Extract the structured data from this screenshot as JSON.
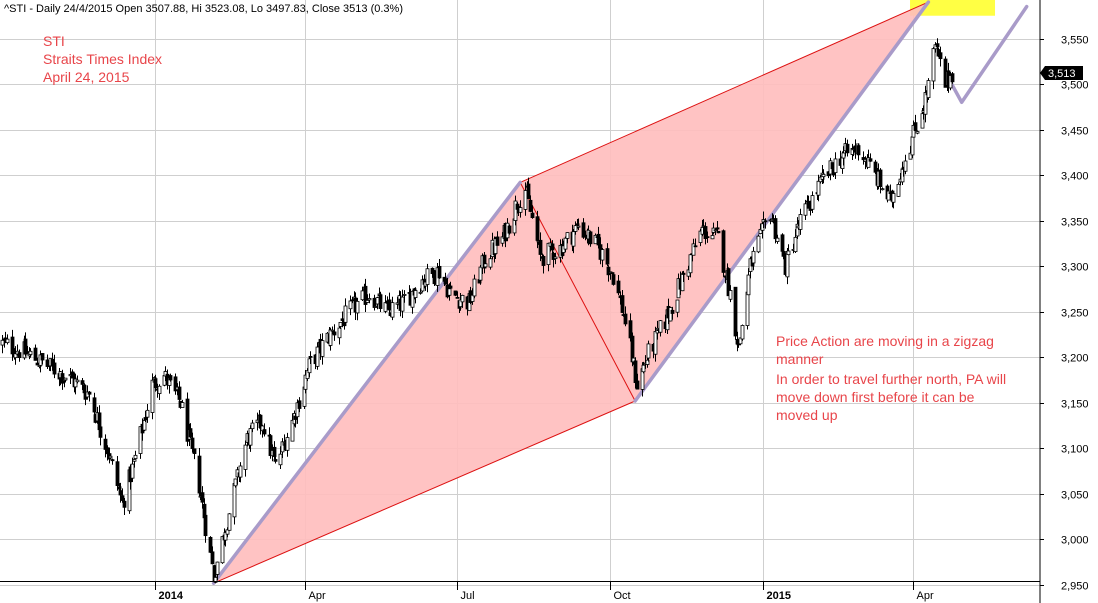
{
  "header": {
    "title": "^STI - Daily 24/4/2015 Open 3507.88, Hi 3523.08, Lo 3497.83, Close 3513 (0.3%)"
  },
  "annotations": {
    "top_left": [
      "STI",
      "Straits Times Index",
      "April 24, 2015"
    ],
    "right": [
      "Price Action are moving in a zigzag",
      "manner",
      "In order to travel further north, PA will",
      "move down first before it can be",
      "moved up"
    ]
  },
  "colors": {
    "annotation_text": "#e8454a",
    "channel_fill": "#ffbcbc",
    "channel_line": "#dd1111",
    "trend_line": "#a99bc9",
    "target_box": "#ffff44",
    "grid": "#cfcfcf",
    "candle": "#000000",
    "last_price_bg": "#000000",
    "last_price_text": "#ffffff"
  },
  "chart_data": {
    "type": "candlestick",
    "symbol": "^STI",
    "period": "Daily",
    "last_bar": {
      "date": "24/4/2015",
      "open": 3507.88,
      "high": 3523.08,
      "low": 3497.83,
      "close": 3513,
      "change_pct": 0.3
    },
    "last_price_label": "3,513",
    "ylim": [
      2940,
      3600
    ],
    "y_ticks": [
      2950,
      3000,
      3050,
      3100,
      3150,
      3200,
      3250,
      3300,
      3350,
      3400,
      3450,
      3500,
      3550
    ],
    "y_tick_labels": [
      "2,950",
      "3,000",
      "3,050",
      "3,100",
      "3,150",
      "3,200",
      "3,250",
      "3,300",
      "3,350",
      "3,400",
      "3,450",
      "3,500",
      "3,550"
    ],
    "x_ticks": [
      {
        "label": "2014",
        "date": "2014-01-01",
        "bold": true
      },
      {
        "label": "Apr",
        "date": "2014-04-01",
        "bold": false
      },
      {
        "label": "Jul",
        "date": "2014-07-01",
        "bold": false
      },
      {
        "label": "Oct",
        "date": "2014-10-01",
        "bold": false
      },
      {
        "label": "2015",
        "date": "2015-01-01",
        "bold": true
      },
      {
        "label": "Apr",
        "date": "2015-04-01",
        "bold": false
      }
    ],
    "price_path": [
      [
        "2013-10-01",
        3215
      ],
      [
        "2013-10-15",
        3205
      ],
      [
        "2013-10-29",
        3190
      ],
      [
        "2013-11-12",
        3175
      ],
      [
        "2013-11-22",
        3160
      ],
      [
        "2013-12-03",
        3100
      ],
      [
        "2013-12-12",
        3040
      ],
      [
        "2013-12-20",
        3090
      ],
      [
        "2013-12-30",
        3170
      ],
      [
        "2014-01-06",
        3180
      ],
      [
        "2014-01-16",
        3150
      ],
      [
        "2014-01-27",
        3060
      ],
      [
        "2014-02-05",
        2960
      ],
      [
        "2014-02-14",
        3030
      ],
      [
        "2014-02-25",
        3110
      ],
      [
        "2014-03-06",
        3130
      ],
      [
        "2014-03-14",
        3080
      ],
      [
        "2014-03-24",
        3130
      ],
      [
        "2014-04-03",
        3190
      ],
      [
        "2014-04-10",
        3210
      ],
      [
        "2014-04-18",
        3230
      ],
      [
        "2014-04-30",
        3255
      ],
      [
        "2014-05-09",
        3270
      ],
      [
        "2014-05-20",
        3250
      ],
      [
        "2014-05-30",
        3260
      ],
      [
        "2014-06-10",
        3285
      ],
      [
        "2014-06-20",
        3295
      ],
      [
        "2014-06-27",
        3270
      ],
      [
        "2014-07-08",
        3260
      ],
      [
        "2014-07-18",
        3310
      ],
      [
        "2014-07-28",
        3330
      ],
      [
        "2014-08-06",
        3370
      ],
      [
        "2014-08-11",
        3385
      ],
      [
        "2014-08-20",
        3310
      ],
      [
        "2014-09-01",
        3320
      ],
      [
        "2014-09-12",
        3345
      ],
      [
        "2014-09-24",
        3320
      ],
      [
        "2014-10-03",
        3290
      ],
      [
        "2014-10-10",
        3240
      ],
      [
        "2014-10-17",
        3170
      ],
      [
        "2014-10-23",
        3200
      ],
      [
        "2014-11-03",
        3240
      ],
      [
        "2014-11-14",
        3290
      ],
      [
        "2014-11-25",
        3340
      ],
      [
        "2014-12-05",
        3330
      ],
      [
        "2014-12-12",
        3270
      ],
      [
        "2014-12-17",
        3210
      ],
      [
        "2014-12-24",
        3300
      ],
      [
        "2015-01-05",
        3360
      ],
      [
        "2015-01-14",
        3300
      ],
      [
        "2015-01-23",
        3350
      ],
      [
        "2015-02-04",
        3390
      ],
      [
        "2015-02-16",
        3420
      ],
      [
        "2015-02-27",
        3430
      ],
      [
        "2015-03-09",
        3400
      ],
      [
        "2015-03-18",
        3370
      ],
      [
        "2015-03-25",
        3410
      ],
      [
        "2015-04-02",
        3450
      ],
      [
        "2015-04-09",
        3490
      ],
      [
        "2015-04-14",
        3540
      ],
      [
        "2015-04-20",
        3500
      ],
      [
        "2015-04-24",
        3513
      ]
    ],
    "pivots": [
      {
        "date": "2014-02-05",
        "price": 2952
      },
      {
        "date": "2014-08-08",
        "price": 3392
      },
      {
        "date": "2014-10-16",
        "price": 3152
      },
      {
        "date": "2015-04-10",
        "price": 3590
      }
    ],
    "channel": {
      "lower": [
        [
          "2014-02-05",
          2952
        ],
        [
          "2014-10-16",
          3152
        ]
      ],
      "upper": [
        [
          "2014-08-08",
          3392
        ],
        [
          "2015-04-10",
          3590
        ]
      ],
      "diagonal": [
        [
          "2014-08-08",
          3392
        ],
        [
          "2014-10-16",
          3152
        ]
      ]
    },
    "trend_lines": [
      [
        [
          "2014-02-05",
          2952
        ],
        [
          "2014-08-08",
          3392
        ]
      ],
      [
        [
          "2014-10-16",
          3152
        ],
        [
          "2015-04-10",
          3590
        ]
      ]
    ],
    "projection": [
      [
        "2015-04-24",
        3500
      ],
      [
        "2015-04-30",
        3480
      ],
      [
        "2015-06-08",
        3585
      ]
    ],
    "target_zone": {
      "date_from": "2015-03-30",
      "date_to": "2015-05-20",
      "price_from": 3575,
      "price_to": 3600
    }
  }
}
